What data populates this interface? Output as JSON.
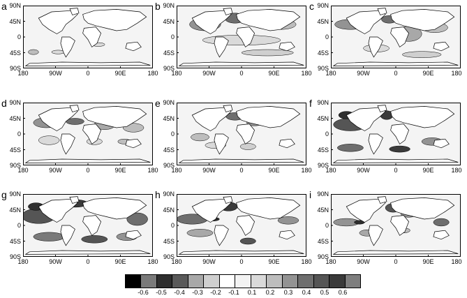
{
  "panels": [
    {
      "label": "a"
    },
    {
      "label": "b"
    },
    {
      "label": "c"
    },
    {
      "label": "d"
    },
    {
      "label": "e"
    },
    {
      "label": "f"
    },
    {
      "label": "g"
    },
    {
      "label": "h"
    },
    {
      "label": "i"
    }
  ],
  "lat_ticks": [
    "90N",
    "45N",
    "0",
    "45S",
    "90S"
  ],
  "lon_ticks": [
    "180",
    "90W",
    "0",
    "90E",
    "180"
  ],
  "colorbar": {
    "colors": [
      "#000000",
      "#7a7a7a",
      "#2e2e2e",
      "#5a5a5a",
      "#a8a8a8",
      "#cfcfcf",
      "#ffffff",
      "#f3f3f3",
      "#dadada",
      "#bdbdbd",
      "#939393",
      "#6e6e6e",
      "#555555",
      "#3a3a3a",
      "#7e7e7e"
    ],
    "labels": [
      "-0.6",
      "-0.5",
      "-0.4",
      "-0.3",
      "-0.2",
      "-0.1",
      "0.1",
      "0.2",
      "0.3",
      "0.4",
      "0.5",
      "0.6"
    ]
  }
}
